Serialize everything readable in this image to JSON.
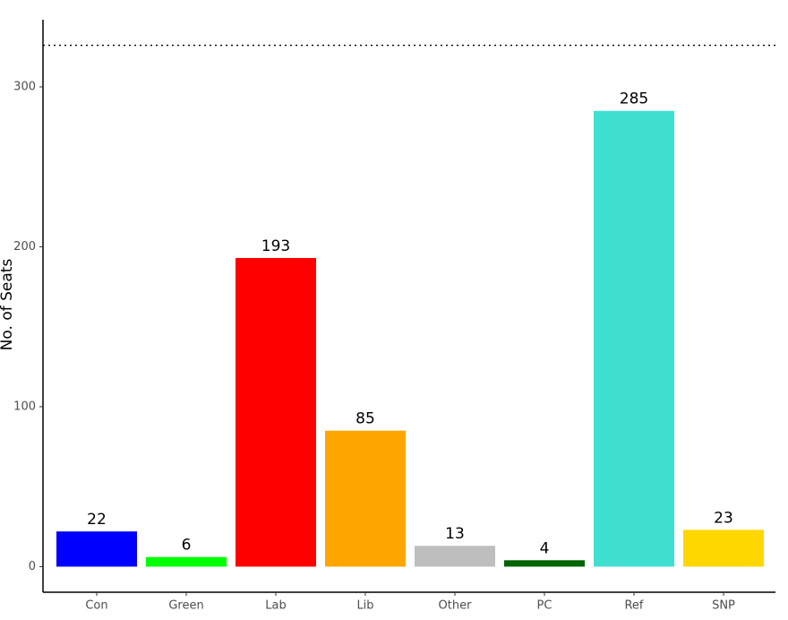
{
  "chart_data": {
    "type": "bar",
    "y_label": "No. of Seats",
    "categories": [
      "Con",
      "Green",
      "Lab",
      "Lib",
      "Other",
      "PC",
      "Ref",
      "SNP"
    ],
    "values": [
      22,
      6,
      193,
      85,
      13,
      4,
      285,
      23
    ],
    "colors": [
      "#0000ff",
      "#00ff00",
      "#ff0000",
      "#ffa500",
      "#bebebe",
      "#006400",
      "#40e0d0",
      "#ffd700"
    ],
    "ylim": [
      -16,
      342
    ],
    "yticks": [
      0,
      100,
      200,
      300
    ],
    "reference_line": 326,
    "grid": false
  }
}
